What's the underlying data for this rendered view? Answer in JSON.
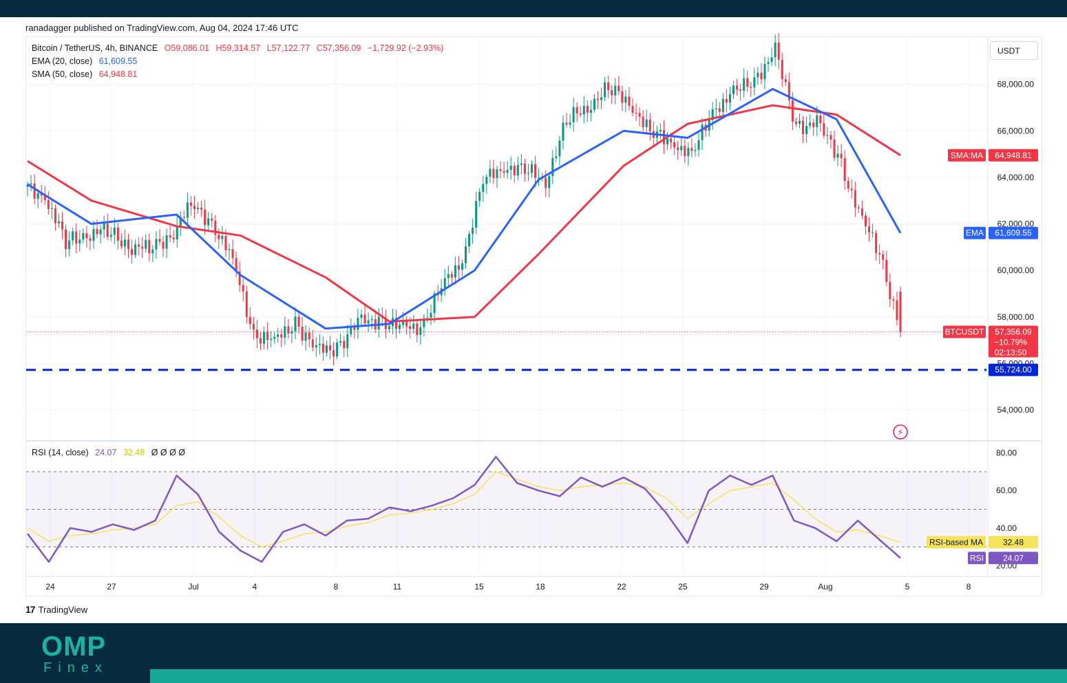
{
  "publisher": "ranadagger published on TradingView.com, Aug 04, 2024 17:46 UTC",
  "legend": {
    "symbol": "Bitcoin / TetherUS, 4h, BINANCE",
    "open": "O59,086.01",
    "high": "H59,314.57",
    "low": "L57,122.77",
    "close": "C57,356.09",
    "change": "−1,729.92 (−2.93%)",
    "ema_label": "EMA (20, close)",
    "ema_value": "61,609.55",
    "sma_label": "SMA (50, close)",
    "sma_value": "64,948.81",
    "rsi_label": "RSI (14, close)",
    "rsi_value": "24.07",
    "rsi_ma_value": "32.48",
    "rsi_extra": "Ø Ø Ø Ø"
  },
  "currency_button": "USDT",
  "tags": {
    "sma_name": "SMA:MA",
    "sma_price": "64,948.81",
    "ema_name": "EMA",
    "ema_price": "61,609.55",
    "sym_name": "BTCUSDT",
    "sym_price": "57,356.09",
    "sym_change": "−10.79%",
    "sym_timer": "02:13:50",
    "level_price": "55,724.00",
    "rsi_ma_name": "RSI-based MA",
    "rsi_ma_price": "32.48",
    "rsi_name": "RSI",
    "rsi_price": "24.07"
  },
  "footer": {
    "logo_text": "TradingView",
    "brand_big": "OMP",
    "brand_small": "Finex"
  },
  "colors": {
    "up": "#089981",
    "down": "#f23645",
    "ema": "#2962ff",
    "sma": "#f23645",
    "rsi": "#7e57c2",
    "rsi_ma": "#f7e35a",
    "level": "#0026d6",
    "tag_sym": "#f23645"
  },
  "chart_data": {
    "type": "line",
    "title": "Bitcoin / TetherUS, 4h, BINANCE",
    "price_axis_ticks": [
      54000,
      56000,
      58000,
      60000,
      62000,
      64000,
      66000,
      68000
    ],
    "price_axis_labels": [
      "54,000.00",
      "56,000.00",
      "58,000.00",
      "60,000.00",
      "62,000.00",
      "64,000.00",
      "66,000.00",
      "68,000.00"
    ],
    "ylim": [
      52700,
      70000
    ],
    "x_ticks": [
      "24",
      "27",
      "Jul",
      "4",
      "8",
      "11",
      "15",
      "18",
      "22",
      "25",
      "29",
      "Aug",
      "5",
      "8"
    ],
    "horizontal_level": 55724,
    "last_price": 57356.09,
    "series": [
      {
        "name": "BTCUSDT",
        "x": [
          "Jun 24",
          "Jun 25",
          "Jun 26",
          "Jun 27",
          "Jun 28",
          "Jun 29",
          "Jun 30",
          "Jul 1",
          "Jul 2",
          "Jul 3",
          "Jul 4",
          "Jul 5",
          "Jul 6",
          "Jul 7",
          "Jul 8",
          "Jul 9",
          "Jul 10",
          "Jul 11",
          "Jul 12",
          "Jul 13",
          "Jul 14",
          "Jul 15",
          "Jul 16",
          "Jul 17",
          "Jul 18",
          "Jul 19",
          "Jul 20",
          "Jul 21",
          "Jul 22",
          "Jul 23",
          "Jul 24",
          "Jul 25",
          "Jul 26",
          "Jul 27",
          "Jul 28",
          "Jul 29",
          "Jul 30",
          "Jul 31",
          "Aug 1",
          "Aug 2",
          "Aug 3",
          "Aug 4"
        ],
        "values": [
          63200,
          61200,
          61600,
          61700,
          61100,
          60900,
          61500,
          62800,
          62100,
          60400,
          57300,
          56900,
          57800,
          56500,
          56700,
          57700,
          57900,
          57500,
          57600,
          59200,
          60500,
          63800,
          64500,
          64300,
          63900,
          66400,
          67100,
          67800,
          67300,
          65900,
          65600,
          64900,
          66900,
          67600,
          68200,
          69400,
          66200,
          66300,
          65000,
          62400,
          60800,
          57356
        ]
      },
      {
        "name": "EMA (20, close)",
        "x": [
          "Jun 24",
          "Jun 27",
          "Jul 1",
          "Jul 4",
          "Jul 8",
          "Jul 11",
          "Jul 15",
          "Jul 18",
          "Jul 22",
          "Jul 25",
          "Jul 29",
          "Aug 1",
          "Aug 4"
        ],
        "values": [
          63700,
          62000,
          62400,
          59800,
          57500,
          57700,
          60000,
          63900,
          66000,
          65700,
          67800,
          66500,
          61610
        ]
      },
      {
        "name": "SMA (50, close)",
        "x": [
          "Jun 24",
          "Jun 27",
          "Jul 1",
          "Jul 4",
          "Jul 8",
          "Jul 11",
          "Jul 15",
          "Jul 18",
          "Jul 22",
          "Jul 25",
          "Jul 29",
          "Aug 1",
          "Aug 4"
        ],
        "values": [
          64700,
          63000,
          61900,
          61500,
          59700,
          57800,
          58000,
          60700,
          64500,
          66300,
          67100,
          66700,
          64949
        ]
      }
    ],
    "rsi": {
      "ylim": [
        15,
        85
      ],
      "ticks": [
        20,
        40,
        60,
        80
      ],
      "tick_labels": [
        "20.00",
        "40.00",
        "60.00",
        "80.00"
      ],
      "overbought": 70,
      "oversold": 30,
      "middle": 50,
      "x": [
        "Jun 24",
        "Jun 25",
        "Jun 26",
        "Jun 27",
        "Jun 28",
        "Jun 29",
        "Jun 30",
        "Jul 1",
        "Jul 2",
        "Jul 3",
        "Jul 4",
        "Jul 5",
        "Jul 6",
        "Jul 7",
        "Jul 8",
        "Jul 9",
        "Jul 10",
        "Jul 11",
        "Jul 12",
        "Jul 13",
        "Jul 14",
        "Jul 15",
        "Jul 16",
        "Jul 17",
        "Jul 18",
        "Jul 19",
        "Jul 20",
        "Jul 21",
        "Jul 22",
        "Jul 23",
        "Jul 24",
        "Jul 25",
        "Jul 26",
        "Jul 27",
        "Jul 28",
        "Jul 29",
        "Jul 30",
        "Jul 31",
        "Aug 1",
        "Aug 2",
        "Aug 3",
        "Aug 4"
      ],
      "values": [
        37,
        22,
        40,
        38,
        42,
        39,
        44,
        68,
        58,
        38,
        28,
        22,
        38,
        42,
        36,
        44,
        45,
        51,
        49,
        52,
        56,
        63,
        78,
        64,
        60,
        57,
        67,
        62,
        67,
        61,
        48,
        32,
        60,
        68,
        63,
        68,
        44,
        40,
        33,
        44,
        34,
        24.07
      ],
      "ma_values": [
        40,
        33,
        36,
        37,
        39,
        40,
        42,
        52,
        54,
        46,
        36,
        30,
        33,
        37,
        38,
        41,
        43,
        47,
        48,
        50,
        53,
        58,
        70,
        66,
        62,
        60,
        62,
        63,
        64,
        62,
        56,
        45,
        53,
        60,
        62,
        64,
        55,
        45,
        38,
        39,
        36,
        32.48
      ]
    }
  }
}
